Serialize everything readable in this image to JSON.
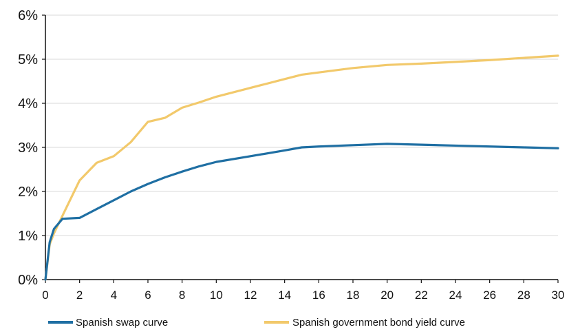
{
  "chart_data": {
    "type": "line",
    "title": "",
    "xlabel": "",
    "ylabel": "",
    "xlim": [
      0,
      30
    ],
    "ylim": [
      0,
      6
    ],
    "x_ticks": [
      0,
      2,
      4,
      6,
      8,
      10,
      12,
      14,
      16,
      18,
      20,
      22,
      24,
      26,
      28,
      30
    ],
    "x_tick_labels": [
      "0",
      "2",
      "4",
      "6",
      "8",
      "10",
      "12",
      "14",
      "16",
      "18",
      "20",
      "22",
      "24",
      "26",
      "28",
      "30"
    ],
    "y_ticks": [
      0,
      1,
      2,
      3,
      4,
      5,
      6
    ],
    "y_tick_labels": [
      "0%",
      "1%",
      "2%",
      "3%",
      "4%",
      "5%",
      "6%"
    ],
    "grid": "horizontal",
    "legend_position": "bottom",
    "series": [
      {
        "name": "Spanish swap curve",
        "color": "#1f6fa3",
        "x": [
          0,
          0.25,
          0.5,
          1,
          2,
          3,
          4,
          5,
          6,
          7,
          8,
          9,
          10,
          12,
          14,
          15,
          16,
          18,
          20,
          22,
          24,
          26,
          28,
          30
        ],
        "y": [
          0.0,
          0.85,
          1.15,
          1.38,
          1.4,
          1.6,
          1.8,
          2.0,
          2.17,
          2.32,
          2.45,
          2.57,
          2.67,
          2.8,
          2.93,
          3.0,
          3.02,
          3.05,
          3.08,
          3.06,
          3.04,
          3.02,
          3.0,
          2.98
        ]
      },
      {
        "name": "Spanish government bond yield curve",
        "color": "#f2c96b",
        "x": [
          0,
          0.25,
          0.5,
          1,
          2,
          3,
          4,
          5,
          6,
          7,
          8,
          9,
          10,
          12,
          14,
          15,
          16,
          18,
          20,
          22,
          24,
          26,
          28,
          30
        ],
        "y": [
          0.0,
          0.8,
          1.05,
          1.45,
          2.25,
          2.65,
          2.8,
          3.12,
          3.58,
          3.67,
          3.9,
          4.02,
          4.15,
          4.35,
          4.55,
          4.65,
          4.7,
          4.8,
          4.87,
          4.9,
          4.94,
          4.98,
          5.03,
          5.08
        ]
      }
    ]
  },
  "colors": {
    "axis": "#111111",
    "grid": "#d8d8d8",
    "background": "#ffffff"
  }
}
